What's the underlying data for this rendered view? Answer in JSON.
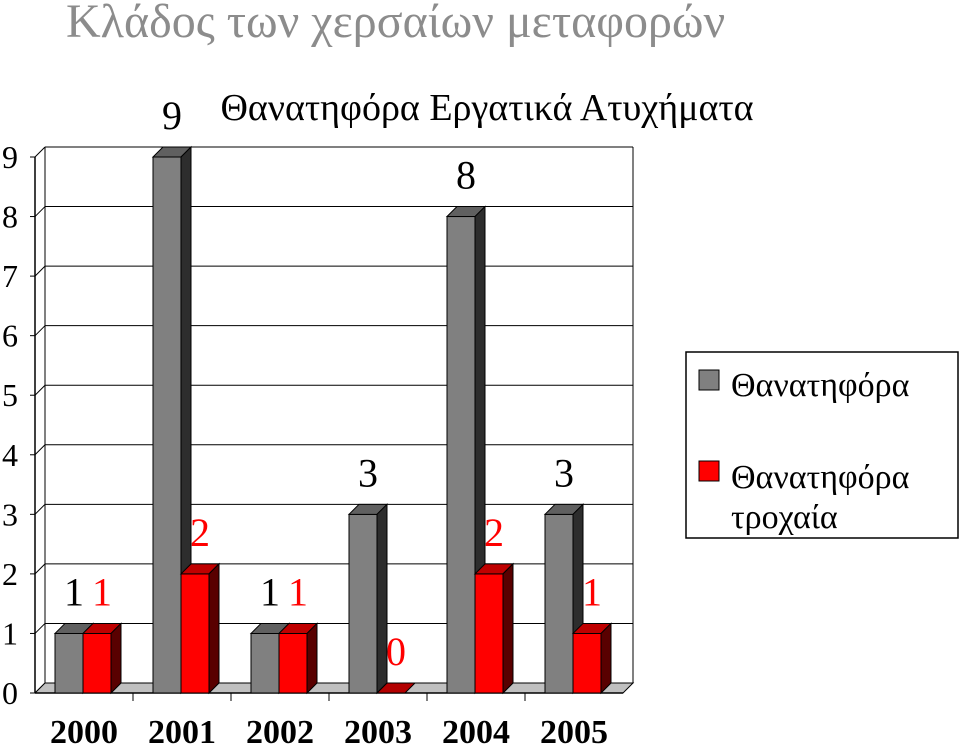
{
  "header": {
    "title": "Κλάδος των χερσαίων μεταφορών"
  },
  "chart_data": {
    "type": "bar",
    "title": "Θανατηφόρα Εργατικά Ατυχήματα",
    "categories": [
      "2000",
      "2001",
      "2002",
      "2003",
      "2004",
      "2005"
    ],
    "series": [
      {
        "name": "Θανατηφόρα",
        "values": [
          1,
          9,
          1,
          3,
          8,
          3
        ],
        "color": "#808080",
        "label_color": "#000000"
      },
      {
        "name": "Θανατηφόρα τροχαία",
        "values": [
          1,
          2,
          1,
          0,
          2,
          1
        ],
        "color": "#ff0000",
        "label_color": "#ff0000"
      }
    ],
    "ylim": [
      0,
      9
    ],
    "yticks": [
      "0",
      "1",
      "2",
      "3",
      "4",
      "5",
      "6",
      "7",
      "8",
      "9"
    ],
    "grid": true,
    "legend": "right",
    "legend_lines": [
      [
        "Θανατηφόρα"
      ],
      [
        "Θανατηφόρα",
        "τροχαία"
      ]
    ]
  }
}
